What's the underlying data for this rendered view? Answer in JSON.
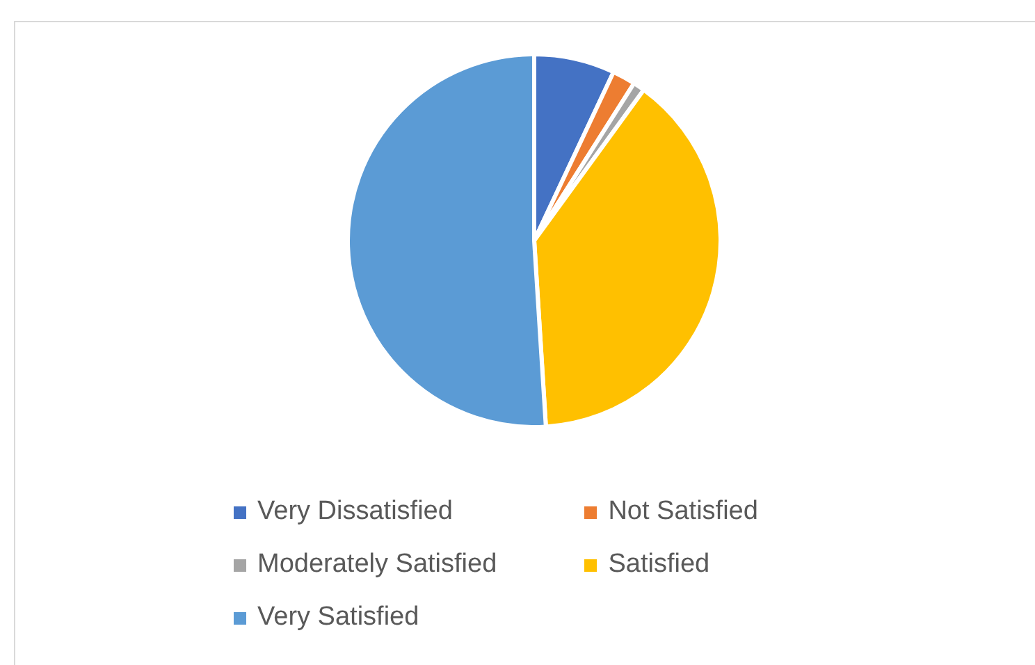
{
  "chart_data": {
    "type": "pie",
    "categories": [
      "Very Dissatisfied",
      "Not Satisfied",
      "Moderately Satisfied",
      "Satisfied",
      "Very Satisfied"
    ],
    "values": [
      7,
      2,
      1,
      39,
      51
    ],
    "colors": [
      "#4472c4",
      "#ed7d31",
      "#a5a5a5",
      "#ffc000",
      "#5b9bd5"
    ],
    "legend": "bottom"
  }
}
